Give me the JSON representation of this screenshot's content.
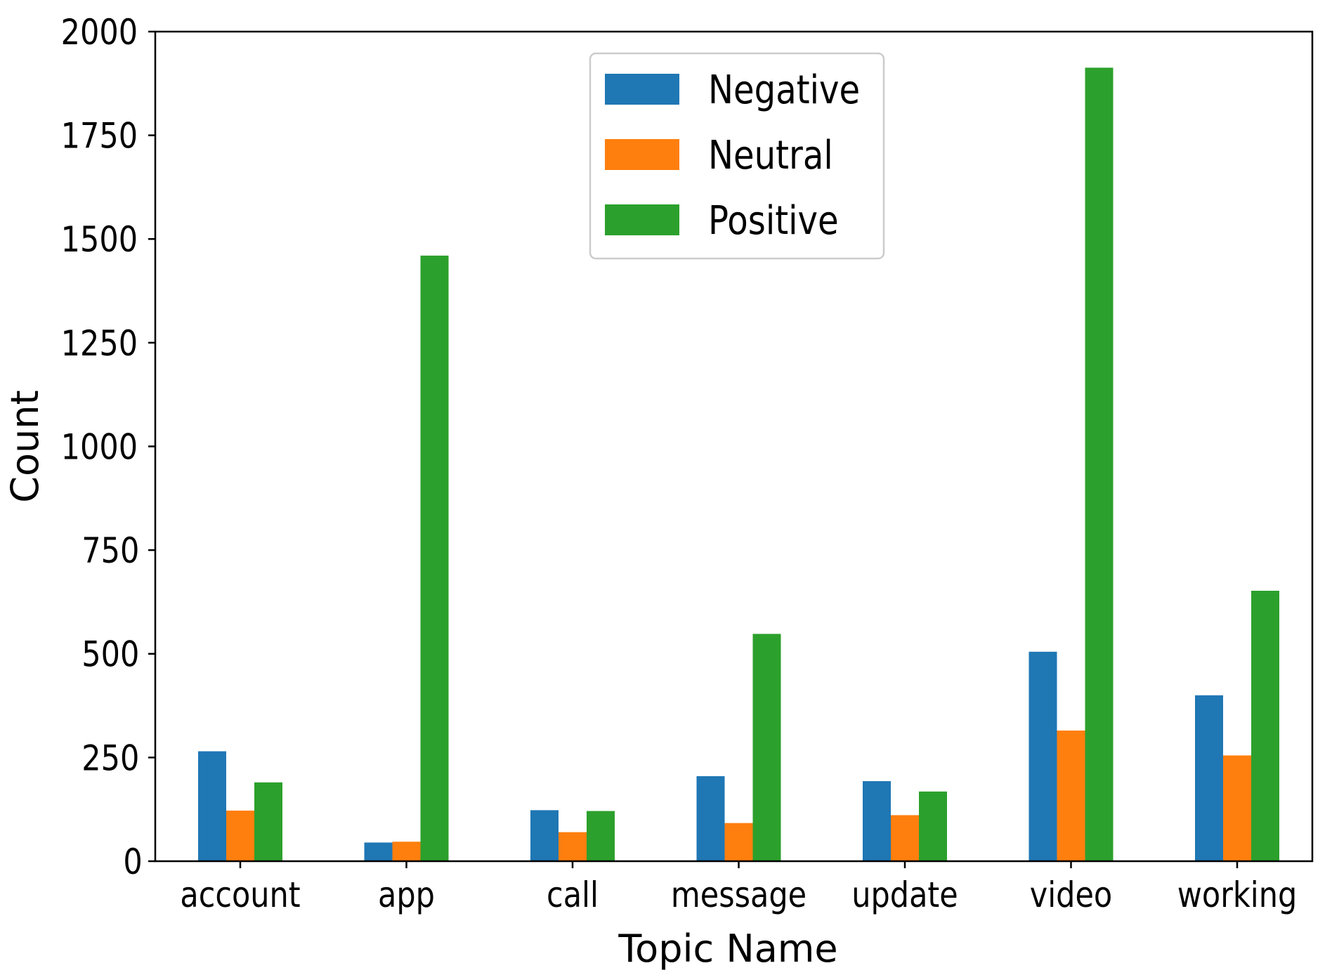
{
  "chart_data": {
    "type": "bar",
    "title": "",
    "xlabel": "Topic Name",
    "ylabel": "Count",
    "categories": [
      "account",
      "app",
      "call",
      "message",
      "update",
      "video",
      "working"
    ],
    "series": [
      {
        "name": "Negative",
        "color": "#1f77b4",
        "values": [
          265,
          45,
          123,
          205,
          193,
          505,
          400
        ]
      },
      {
        "name": "Neutral",
        "color": "#ff7f0e",
        "values": [
          122,
          47,
          70,
          92,
          111,
          315,
          255
        ]
      },
      {
        "name": "Positive",
        "color": "#2ca02c",
        "values": [
          190,
          1460,
          121,
          548,
          168,
          1913,
          652
        ]
      }
    ],
    "ylim": [
      0,
      2000
    ],
    "yticks": [
      0,
      250,
      500,
      750,
      1000,
      1250,
      1500,
      1750,
      2000
    ],
    "grid": false,
    "legend_position": "top-center"
  }
}
